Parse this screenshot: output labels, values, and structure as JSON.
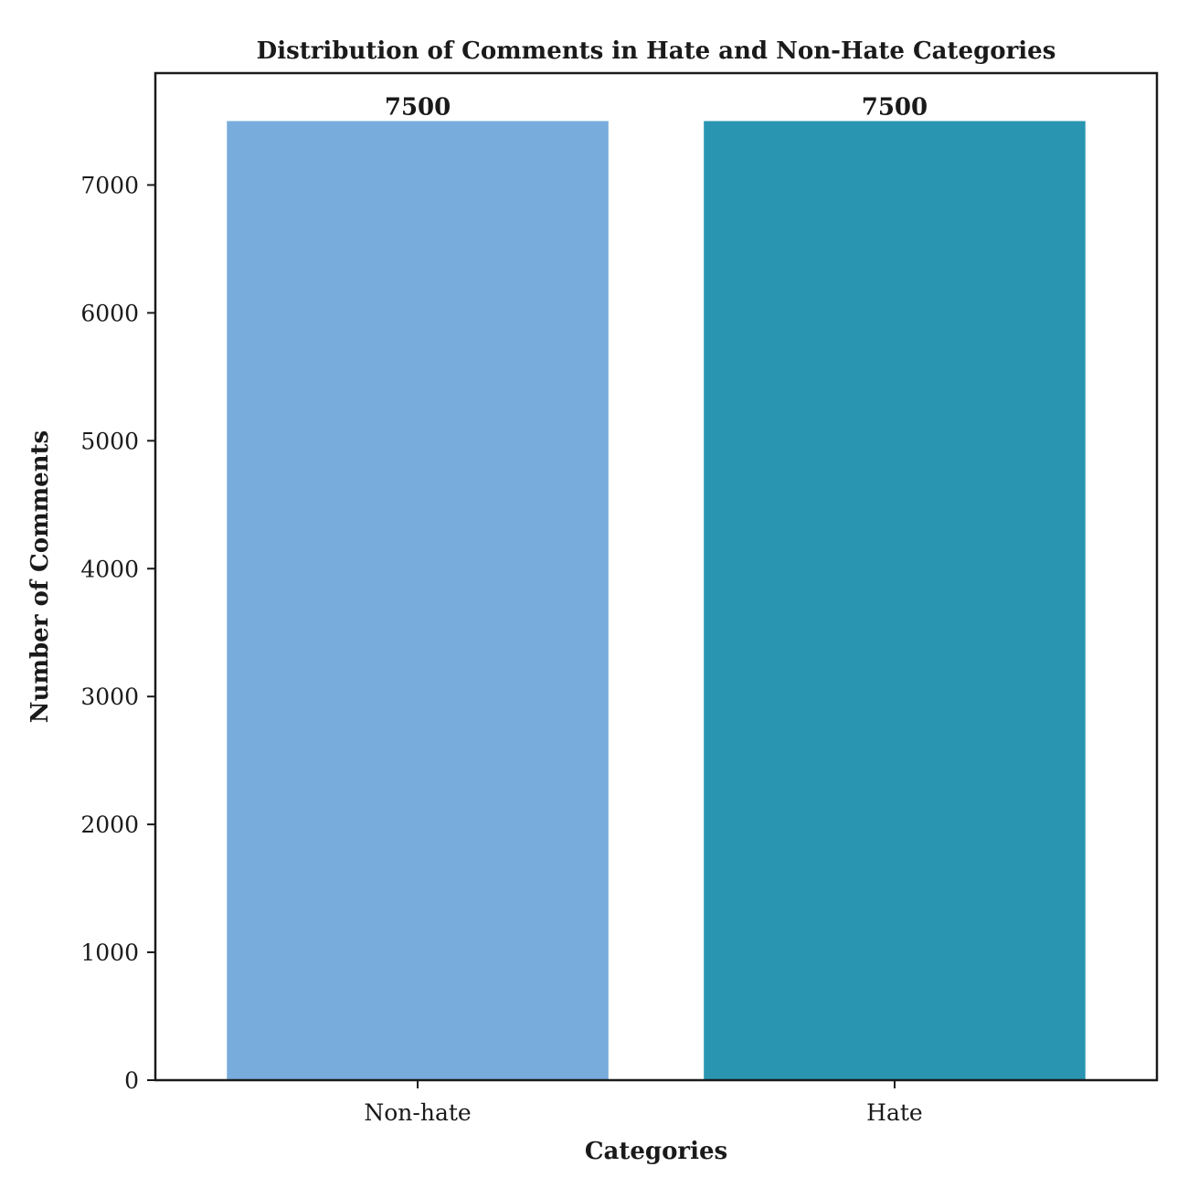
{
  "chart_data": {
    "type": "bar",
    "title": "Distribution of Comments in Hate and Non-Hate Categories",
    "xlabel": "Categories",
    "ylabel": "Number of Comments",
    "categories": [
      "Non-hate",
      "Hate"
    ],
    "values": [
      7500,
      7500
    ],
    "data_labels": [
      "7500",
      "7500"
    ],
    "colors": [
      "#78acdc",
      "#2a95b1"
    ],
    "ylim": [
      0,
      7875
    ],
    "yticks": [
      0,
      1000,
      2000,
      3000,
      4000,
      5000,
      6000,
      7000
    ],
    "ytick_labels": [
      "0",
      "1000",
      "2000",
      "3000",
      "4000",
      "5000",
      "6000",
      "7000"
    ],
    "grid": false,
    "legend": false
  }
}
